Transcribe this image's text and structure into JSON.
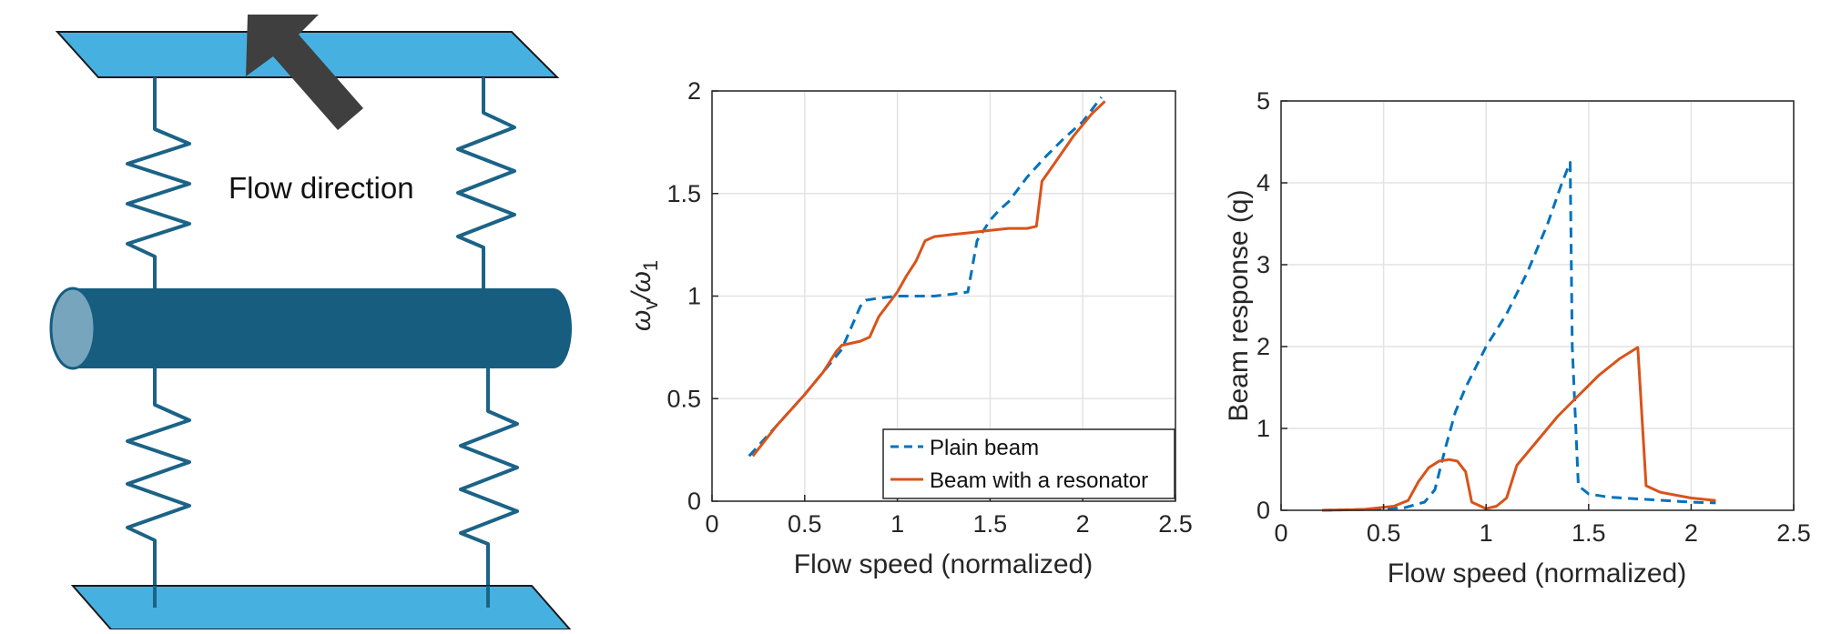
{
  "diagram": {
    "flow_label": "Flow direction",
    "colors": {
      "plate": "#46b1e1",
      "cylinder": "#165d80",
      "cylinder_end": "#76a5bd",
      "spring": "#1b6387",
      "arrow": "#3f3f3f"
    }
  },
  "chart_data": [
    {
      "type": "line",
      "title": "",
      "xlabel": "Flow speed (normalized)",
      "ylabel_main": "ω",
      "ylabel_sub1": "v",
      "ylabel_sep": "/ω",
      "ylabel_sub2": "1",
      "xlim": [
        0,
        2.5
      ],
      "ylim": [
        0,
        2
      ],
      "xticks": [
        0,
        0.5,
        1,
        1.5,
        2,
        2.5
      ],
      "yticks": [
        0,
        0.5,
        1,
        1.5,
        2
      ],
      "grid": true,
      "legend": "bottom-right",
      "series": [
        {
          "name": "Plain beam",
          "color": "#0072bd",
          "style": "dashed",
          "points": [
            [
              0.2,
              0.22
            ],
            [
              0.35,
              0.37
            ],
            [
              0.5,
              0.52
            ],
            [
              0.6,
              0.63
            ],
            [
              0.7,
              0.74
            ],
            [
              0.8,
              0.95
            ],
            [
              0.83,
              0.98
            ],
            [
              0.9,
              0.99
            ],
            [
              1.0,
              1.0
            ],
            [
              1.1,
              1.0
            ],
            [
              1.2,
              1.0
            ],
            [
              1.3,
              1.01
            ],
            [
              1.38,
              1.02
            ],
            [
              1.43,
              1.27
            ],
            [
              1.5,
              1.37
            ],
            [
              1.55,
              1.42
            ],
            [
              1.6,
              1.46
            ],
            [
              1.7,
              1.58
            ],
            [
              1.8,
              1.68
            ],
            [
              1.9,
              1.77
            ],
            [
              2.0,
              1.85
            ],
            [
              2.1,
              1.97
            ]
          ]
        },
        {
          "name": "Beam with a resonator",
          "color": "#d95319",
          "style": "solid",
          "points": [
            [
              0.22,
              0.22
            ],
            [
              0.35,
              0.37
            ],
            [
              0.5,
              0.52
            ],
            [
              0.6,
              0.63
            ],
            [
              0.67,
              0.73
            ],
            [
              0.7,
              0.76
            ],
            [
              0.8,
              0.78
            ],
            [
              0.85,
              0.8
            ],
            [
              0.9,
              0.9
            ],
            [
              1.0,
              1.02
            ],
            [
              1.05,
              1.1
            ],
            [
              1.1,
              1.17
            ],
            [
              1.15,
              1.27
            ],
            [
              1.2,
              1.29
            ],
            [
              1.3,
              1.3
            ],
            [
              1.4,
              1.31
            ],
            [
              1.5,
              1.32
            ],
            [
              1.6,
              1.33
            ],
            [
              1.7,
              1.33
            ],
            [
              1.75,
              1.34
            ],
            [
              1.78,
              1.56
            ],
            [
              1.85,
              1.65
            ],
            [
              1.95,
              1.78
            ],
            [
              2.05,
              1.89
            ],
            [
              2.12,
              1.95
            ]
          ]
        }
      ]
    },
    {
      "type": "line",
      "title": "",
      "xlabel": "Flow speed (normalized)",
      "ylabel": "Beam response (q)",
      "xlim": [
        0,
        2.5
      ],
      "ylim": [
        0,
        5
      ],
      "xticks": [
        0,
        0.5,
        1,
        1.5,
        2,
        2.5
      ],
      "yticks": [
        0,
        1,
        2,
        3,
        4,
        5
      ],
      "grid": true,
      "series": [
        {
          "name": "Plain beam",
          "color": "#0072bd",
          "style": "dashed",
          "points": [
            [
              0.2,
              0.0
            ],
            [
              0.4,
              0.01
            ],
            [
              0.6,
              0.03
            ],
            [
              0.7,
              0.1
            ],
            [
              0.75,
              0.25
            ],
            [
              0.8,
              0.75
            ],
            [
              0.85,
              1.2
            ],
            [
              0.9,
              1.5
            ],
            [
              1.0,
              2.0
            ],
            [
              1.1,
              2.4
            ],
            [
              1.2,
              2.9
            ],
            [
              1.3,
              3.5
            ],
            [
              1.37,
              4.0
            ],
            [
              1.41,
              4.25
            ],
            [
              1.42,
              2.0
            ],
            [
              1.45,
              0.3
            ],
            [
              1.5,
              0.2
            ],
            [
              1.6,
              0.16
            ],
            [
              1.8,
              0.13
            ],
            [
              2.0,
              0.1
            ],
            [
              2.12,
              0.09
            ]
          ]
        },
        {
          "name": "Beam with a resonator",
          "color": "#d95319",
          "style": "solid",
          "points": [
            [
              0.2,
              0.0
            ],
            [
              0.4,
              0.01
            ],
            [
              0.55,
              0.05
            ],
            [
              0.62,
              0.12
            ],
            [
              0.67,
              0.35
            ],
            [
              0.72,
              0.52
            ],
            [
              0.77,
              0.6
            ],
            [
              0.82,
              0.62
            ],
            [
              0.86,
              0.6
            ],
            [
              0.9,
              0.47
            ],
            [
              0.93,
              0.1
            ],
            [
              1.0,
              0.02
            ],
            [
              1.05,
              0.05
            ],
            [
              1.1,
              0.15
            ],
            [
              1.15,
              0.55
            ],
            [
              1.25,
              0.85
            ],
            [
              1.35,
              1.15
            ],
            [
              1.45,
              1.4
            ],
            [
              1.55,
              1.65
            ],
            [
              1.65,
              1.85
            ],
            [
              1.74,
              1.99
            ],
            [
              1.78,
              0.3
            ],
            [
              1.85,
              0.22
            ],
            [
              2.0,
              0.15
            ],
            [
              2.12,
              0.12
            ]
          ]
        }
      ]
    }
  ]
}
